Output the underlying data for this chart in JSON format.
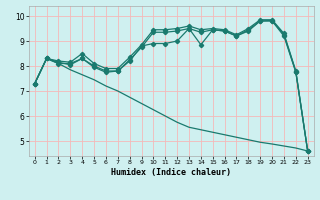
{
  "xlabel": "Humidex (Indice chaleur)",
  "background_color": "#cff0f0",
  "grid_color": "#f5b8b8",
  "line_color": "#1a7a6e",
  "xlim": [
    -0.5,
    23.5
  ],
  "ylim": [
    4.4,
    10.4
  ],
  "xticks": [
    0,
    1,
    2,
    3,
    4,
    5,
    6,
    7,
    8,
    9,
    10,
    11,
    12,
    13,
    14,
    15,
    16,
    17,
    18,
    19,
    20,
    21,
    22,
    23
  ],
  "yticks": [
    5,
    6,
    7,
    8,
    9,
    10
  ],
  "line_top": [
    7.3,
    8.3,
    8.2,
    8.15,
    8.5,
    8.1,
    7.9,
    7.9,
    8.35,
    8.85,
    9.45,
    9.45,
    9.5,
    9.6,
    9.45,
    9.5,
    9.45,
    9.25,
    9.5,
    9.85,
    9.85,
    9.3,
    7.8,
    4.6
  ],
  "line_mid": [
    7.3,
    8.3,
    8.15,
    8.05,
    8.3,
    8.0,
    7.8,
    7.8,
    8.25,
    8.75,
    9.35,
    9.35,
    9.4,
    9.5,
    9.35,
    9.45,
    9.4,
    9.2,
    9.45,
    9.8,
    9.82,
    9.25,
    7.78,
    4.6
  ],
  "line_bot_upper": [
    7.3,
    8.3,
    8.1,
    8.1,
    8.3,
    7.95,
    7.75,
    7.8,
    8.2,
    8.8,
    8.9,
    8.9,
    9.0,
    9.5,
    8.85,
    9.45,
    9.4,
    9.2,
    9.4,
    9.8,
    9.8,
    9.2,
    7.75,
    4.6
  ],
  "line_diverge": [
    7.3,
    8.3,
    8.1,
    7.85,
    7.65,
    7.45,
    7.2,
    7.0,
    6.75,
    6.5,
    6.25,
    6.0,
    5.75,
    5.55,
    5.45,
    5.35,
    5.25,
    5.15,
    5.05,
    4.95,
    4.88,
    4.8,
    4.72,
    4.6
  ]
}
